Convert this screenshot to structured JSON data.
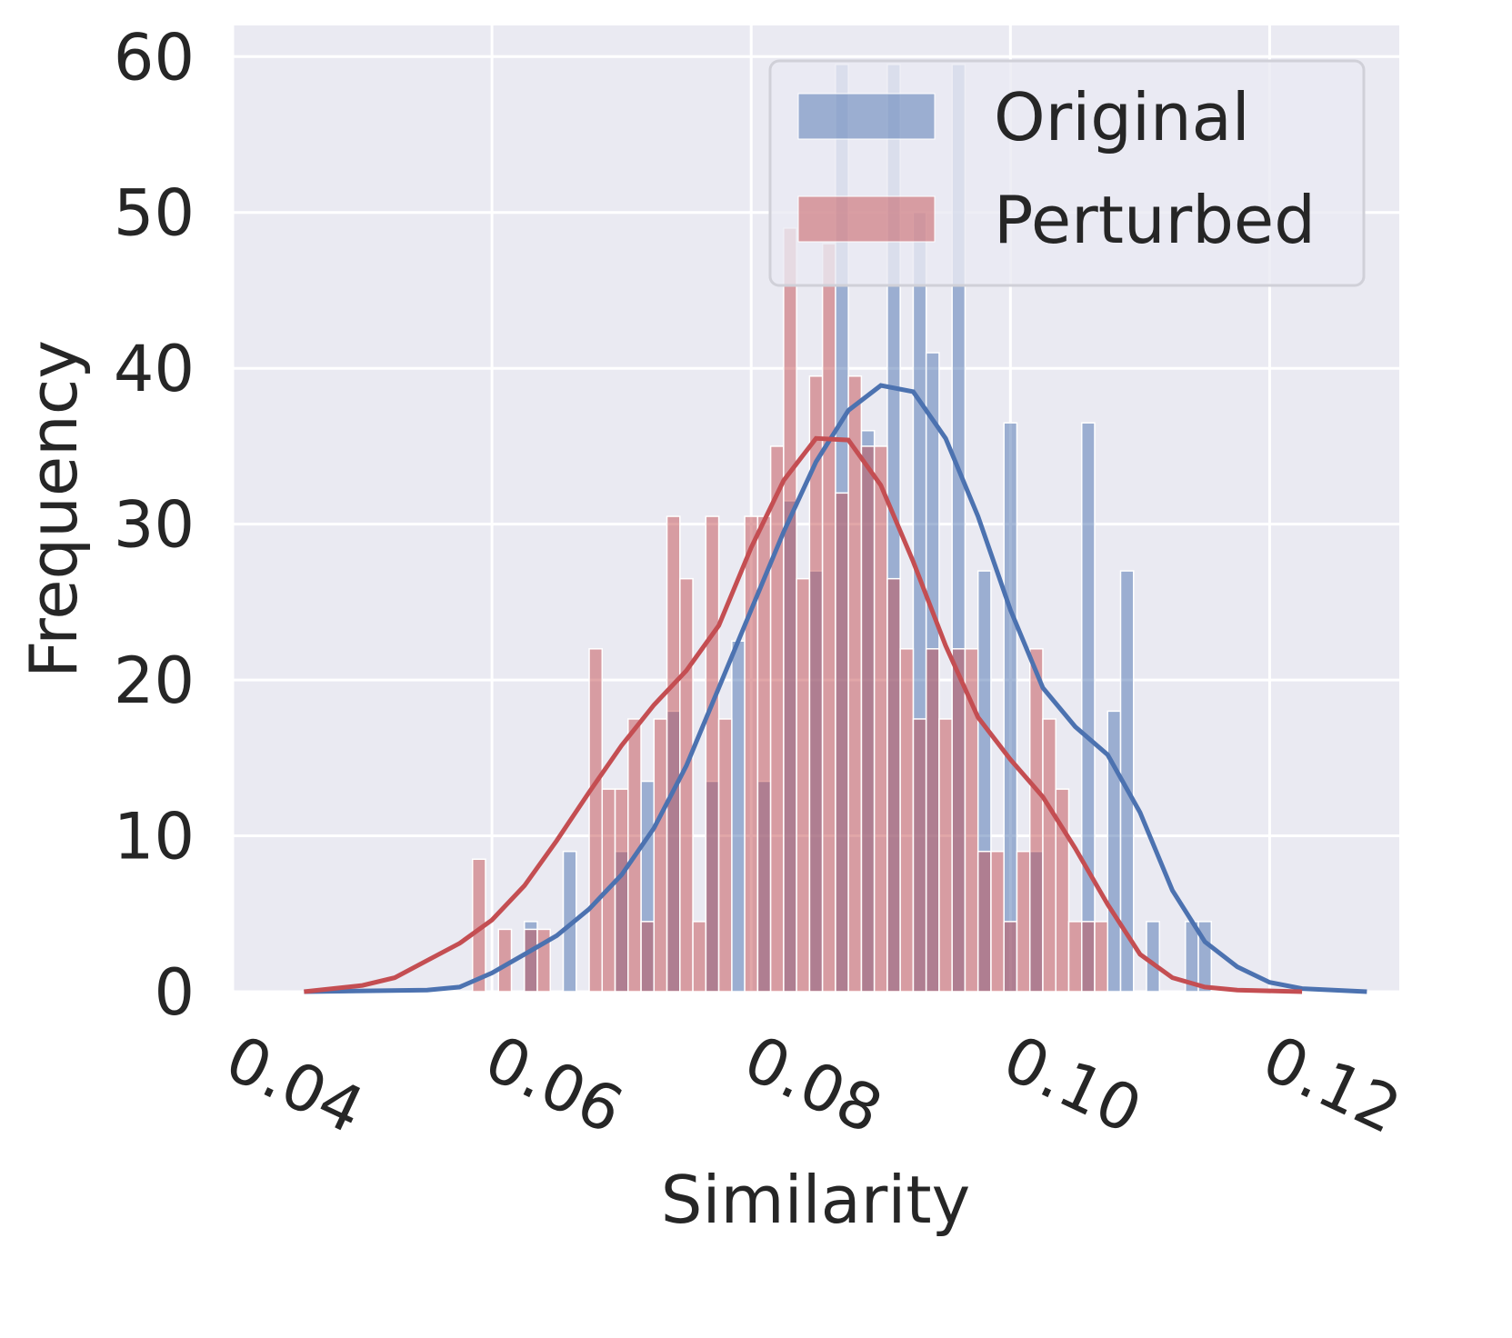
{
  "chart_data": {
    "type": "histogram",
    "xlabel": "Similarity",
    "ylabel": "Frequency",
    "xlim": [
      0.04,
      0.13
    ],
    "ylim": [
      0,
      62
    ],
    "x_tick_labels": [
      "0.04",
      "0.06",
      "0.08",
      "0.10",
      "0.12"
    ],
    "y_tick_labels": [
      "0",
      "10",
      "20",
      "30",
      "40",
      "50",
      "60"
    ],
    "grid": true,
    "legend_position": "top-right",
    "series": [
      {
        "name": "Original",
        "color": "#4c72b0",
        "bins": [
          [
            0.0595,
            0.0605,
            0
          ],
          [
            0.0615,
            0.0625,
            0
          ],
          [
            0.0625,
            0.0635,
            4.5
          ],
          [
            0.0655,
            0.0665,
            9
          ],
          [
            0.0695,
            0.0705,
            9
          ],
          [
            0.0715,
            0.0725,
            13.5
          ],
          [
            0.0735,
            0.0745,
            18
          ],
          [
            0.0765,
            0.0775,
            13.5
          ],
          [
            0.0785,
            0.0795,
            22.5
          ],
          [
            0.0805,
            0.0815,
            13.5
          ],
          [
            0.0825,
            0.0835,
            31.5
          ],
          [
            0.0845,
            0.0855,
            27
          ],
          [
            0.0865,
            0.0875,
            59.5
          ],
          [
            0.0885,
            0.0895,
            36
          ],
          [
            0.0905,
            0.0915,
            59.5
          ],
          [
            0.0925,
            0.0935,
            50
          ],
          [
            0.0935,
            0.0945,
            41
          ],
          [
            0.0955,
            0.0965,
            59.5
          ],
          [
            0.0975,
            0.0985,
            27
          ],
          [
            0.0995,
            0.1005,
            36.5
          ],
          [
            0.1015,
            0.1025,
            9
          ],
          [
            0.1055,
            0.1065,
            36.5
          ],
          [
            0.1075,
            0.1085,
            18
          ],
          [
            0.1085,
            0.1095,
            27
          ],
          [
            0.1105,
            0.1115,
            4.5
          ],
          [
            0.1135,
            0.1145,
            4.5
          ],
          [
            0.1145,
            0.1155,
            4.5
          ]
        ],
        "kde": [
          [
            0.0455,
            0
          ],
          [
            0.055,
            0.1
          ],
          [
            0.0575,
            0.3
          ],
          [
            0.06,
            1.2
          ],
          [
            0.0625,
            2.4
          ],
          [
            0.065,
            3.6
          ],
          [
            0.0675,
            5.3
          ],
          [
            0.07,
            7.5
          ],
          [
            0.0725,
            10.5
          ],
          [
            0.075,
            14.5
          ],
          [
            0.0775,
            19.5
          ],
          [
            0.08,
            24.5
          ],
          [
            0.0825,
            29.5
          ],
          [
            0.085,
            34
          ],
          [
            0.0875,
            37.3
          ],
          [
            0.09,
            38.9
          ],
          [
            0.0925,
            38.5
          ],
          [
            0.095,
            35.5
          ],
          [
            0.0975,
            30.5
          ],
          [
            0.1,
            24.5
          ],
          [
            0.1025,
            19.5
          ],
          [
            0.105,
            17
          ],
          [
            0.1075,
            15.2
          ],
          [
            0.11,
            11.5
          ],
          [
            0.1125,
            6.5
          ],
          [
            0.115,
            3.2
          ],
          [
            0.1175,
            1.6
          ],
          [
            0.12,
            0.6
          ],
          [
            0.1225,
            0.2
          ],
          [
            0.1275,
            0
          ]
        ]
      },
      {
        "name": "Perturbed",
        "color": "#c44e52",
        "bins": [
          [
            0.0585,
            0.0595,
            8.5
          ],
          [
            0.0605,
            0.0615,
            4
          ],
          [
            0.0625,
            0.0635,
            4
          ],
          [
            0.0635,
            0.0645,
            4
          ],
          [
            0.0675,
            0.0685,
            22
          ],
          [
            0.0685,
            0.0695,
            13
          ],
          [
            0.0695,
            0.0705,
            13
          ],
          [
            0.0705,
            0.0715,
            17.5
          ],
          [
            0.0715,
            0.0725,
            4.5
          ],
          [
            0.0725,
            0.0735,
            17.5
          ],
          [
            0.0735,
            0.0745,
            30.5
          ],
          [
            0.0745,
            0.0755,
            26.5
          ],
          [
            0.0755,
            0.0765,
            4.5
          ],
          [
            0.0765,
            0.0775,
            30.5
          ],
          [
            0.0775,
            0.0785,
            17.5
          ],
          [
            0.0795,
            0.0805,
            30.5
          ],
          [
            0.0805,
            0.0815,
            30.5
          ],
          [
            0.0815,
            0.0825,
            35
          ],
          [
            0.0825,
            0.0835,
            49
          ],
          [
            0.0835,
            0.0845,
            26.5
          ],
          [
            0.0845,
            0.0855,
            39.5
          ],
          [
            0.0855,
            0.0865,
            48
          ],
          [
            0.0865,
            0.0875,
            32
          ],
          [
            0.0875,
            0.0885,
            39.5
          ],
          [
            0.0885,
            0.0895,
            35
          ],
          [
            0.0895,
            0.0905,
            35
          ],
          [
            0.0905,
            0.0915,
            26.5
          ],
          [
            0.0915,
            0.0925,
            22
          ],
          [
            0.0925,
            0.0935,
            17.5
          ],
          [
            0.0935,
            0.0945,
            22
          ],
          [
            0.0945,
            0.0955,
            17.5
          ],
          [
            0.0955,
            0.0965,
            22
          ],
          [
            0.0965,
            0.0975,
            22
          ],
          [
            0.0975,
            0.0985,
            9
          ],
          [
            0.0985,
            0.0995,
            9
          ],
          [
            0.0995,
            0.1005,
            4.5
          ],
          [
            0.1005,
            0.1015,
            9
          ],
          [
            0.1015,
            0.1025,
            22
          ],
          [
            0.1025,
            0.1035,
            17.5
          ],
          [
            0.1035,
            0.1045,
            13
          ],
          [
            0.1045,
            0.1055,
            4.5
          ],
          [
            0.1055,
            0.1065,
            4.5
          ],
          [
            0.1065,
            0.1075,
            4.5
          ]
        ],
        "kde": [
          [
            0.0455,
            0
          ],
          [
            0.05,
            0.4
          ],
          [
            0.0525,
            0.9
          ],
          [
            0.055,
            2
          ],
          [
            0.0575,
            3.1
          ],
          [
            0.06,
            4.6
          ],
          [
            0.0625,
            6.8
          ],
          [
            0.065,
            9.7
          ],
          [
            0.0675,
            12.8
          ],
          [
            0.07,
            15.8
          ],
          [
            0.0725,
            18.4
          ],
          [
            0.075,
            20.6
          ],
          [
            0.0775,
            23.5
          ],
          [
            0.08,
            28.5
          ],
          [
            0.0825,
            32.8
          ],
          [
            0.085,
            35.5
          ],
          [
            0.0875,
            35.4
          ],
          [
            0.09,
            32.5
          ],
          [
            0.0925,
            27.6
          ],
          [
            0.095,
            22.2
          ],
          [
            0.0975,
            17.6
          ],
          [
            0.1,
            14.9
          ],
          [
            0.1025,
            12.5
          ],
          [
            0.105,
            9.2
          ],
          [
            0.1075,
            5.6
          ],
          [
            0.11,
            2.4
          ],
          [
            0.1125,
            0.9
          ],
          [
            0.115,
            0.3
          ],
          [
            0.1175,
            0.1
          ],
          [
            0.1225,
            0
          ]
        ]
      }
    ]
  }
}
